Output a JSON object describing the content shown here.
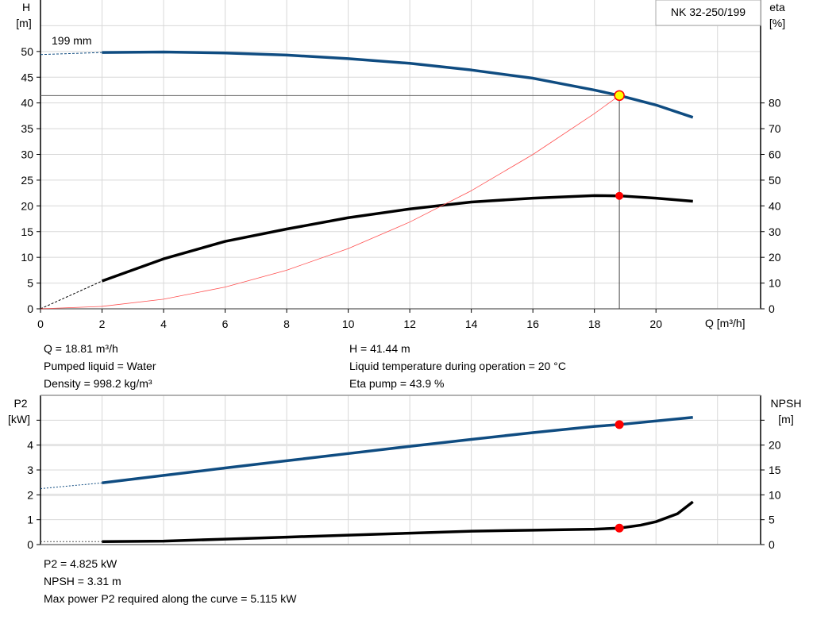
{
  "chart_data": [
    {
      "type": "line",
      "pump_label": "NK 32-250/199",
      "impeller_label": "199 mm",
      "xlabel": "Q [m³/h]",
      "ylabel_left": {
        "name": "H",
        "unit": "[m]"
      },
      "ylabel_right": {
        "name": "eta",
        "unit": "[%]"
      },
      "xlim": [
        0,
        23.4
      ],
      "ylim_left": [
        0,
        60
      ],
      "ylim_right": [
        0,
        120
      ],
      "x_ticks": [
        0,
        2,
        4,
        6,
        8,
        10,
        12,
        14,
        16,
        18,
        20
      ],
      "y_ticks_left": [
        0,
        5,
        10,
        15,
        20,
        25,
        30,
        35,
        40,
        45,
        50
      ],
      "y_ticks_right": [
        0,
        10,
        20,
        30,
        40,
        50,
        60,
        70,
        80
      ],
      "grid": true,
      "series": [
        {
          "axis": "left",
          "color": "#0f4c81",
          "dashed_x": [
            0,
            2
          ],
          "dashed_y": [
            49.4,
            49.8
          ],
          "x": [
            2,
            4,
            6,
            8,
            10,
            12,
            14,
            16,
            18,
            18.81,
            20,
            21.2
          ],
          "y": [
            49.8,
            49.9,
            49.7,
            49.3,
            48.6,
            47.7,
            46.4,
            44.8,
            42.5,
            41.44,
            39.6,
            37.2
          ]
        },
        {
          "axis": "right",
          "color": "#000000",
          "dashed_x": [
            0,
            2
          ],
          "dashed_y": [
            0,
            10.8
          ],
          "x": [
            2,
            4,
            6,
            8,
            10,
            12,
            14,
            16,
            18,
            18.81,
            20,
            21.2
          ],
          "y": [
            10.8,
            19.4,
            26.2,
            31,
            35.4,
            38.8,
            41.5,
            43,
            44,
            43.9,
            43,
            41.8
          ]
        },
        {
          "axis": "left",
          "color": "#ff5050",
          "x": [
            0,
            2,
            4,
            6,
            8,
            10,
            12,
            14,
            16,
            18,
            18.81
          ],
          "y": [
            0,
            0.47,
            1.87,
            4.22,
            7.5,
            11.71,
            16.86,
            22.95,
            29.98,
            37.94,
            41.44
          ]
        }
      ],
      "operating_point": {
        "q": 18.81,
        "h": 41.44,
        "eta": 43.9
      }
    },
    {
      "type": "line",
      "ylabel_left": {
        "name": "P2",
        "unit": "[kW]"
      },
      "ylabel_right": {
        "name": "NPSH",
        "unit": "[m]"
      },
      "xlim": [
        0,
        23.4
      ],
      "ylim_left": [
        0,
        6
      ],
      "ylim_right": [
        0,
        30
      ],
      "y_ticks_left": [
        0,
        1,
        2,
        3,
        4,
        5
      ],
      "y_ticks_left_labels": [
        "0",
        "1",
        "2",
        "3",
        "4",
        ""
      ],
      "y_ticks_right": [
        0,
        5,
        10,
        15,
        20,
        25
      ],
      "y_ticks_right_labels": [
        "0",
        "5",
        "10",
        "15",
        "20",
        ""
      ],
      "grid": true,
      "series": [
        {
          "axis": "left",
          "color": "#0f4c81",
          "dashed_x": [
            0,
            2
          ],
          "dashed_y": [
            2.25,
            2.48
          ],
          "x": [
            2,
            4,
            6,
            8,
            10,
            12,
            14,
            16,
            18,
            18.81,
            21.2
          ],
          "y": [
            2.48,
            2.78,
            3.08,
            3.37,
            3.66,
            3.95,
            4.23,
            4.5,
            4.75,
            4.825,
            5.115
          ]
        },
        {
          "axis": "right",
          "color": "#000000",
          "dashed_x": [
            0,
            2
          ],
          "dashed_y": [
            0.6,
            0.6
          ],
          "x": [
            2,
            4,
            6,
            8,
            10,
            12,
            14,
            16,
            18,
            18.81,
            19.5,
            20,
            20.7,
            21.2
          ],
          "y": [
            0.6,
            0.7,
            1.1,
            1.5,
            1.9,
            2.3,
            2.7,
            2.9,
            3.1,
            3.31,
            3.9,
            4.6,
            6.2,
            8.6
          ]
        }
      ],
      "operating_point": {
        "q": 18.81,
        "p2": 4.825,
        "npsh": 3.31
      }
    }
  ],
  "info_top": {
    "q": "Q = 18.81 m³/h",
    "liquid": "Pumped liquid = Water",
    "density": "Density = 998.2 kg/m³",
    "h": "H = 41.44 m",
    "temp": "Liquid temperature during operation = 20 °C",
    "eta": "Eta pump = 43.9 %"
  },
  "info_bottom": {
    "p2": "P2 = 4.825 kW",
    "npsh": "NPSH = 3.31 m",
    "max_power": "Max power P2 required along the curve = 5.115 kW"
  }
}
